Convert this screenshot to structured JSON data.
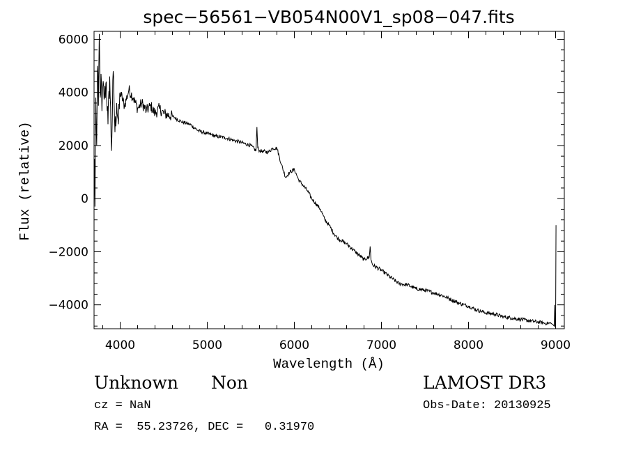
{
  "chart_data": {
    "type": "line",
    "title": "spec−56561−VB054N00V1_sp08−047.fits",
    "xlabel": "Wavelength (Å)",
    "ylabel": "Flux (relative)",
    "xlim": [
      3700,
      9100
    ],
    "ylim": [
      -4900,
      6300
    ],
    "xticks": [
      4000,
      5000,
      6000,
      7000,
      8000,
      9000
    ],
    "xtick_labels": [
      "4000",
      "5000",
      "6000",
      "7000",
      "8000",
      "9000"
    ],
    "yticks": [
      -4000,
      -2000,
      0,
      2000,
      4000,
      6000
    ],
    "ytick_labels": [
      "−4000",
      "−2000",
      "0",
      "2000",
      "4000",
      "6000"
    ],
    "grid": false,
    "series": [
      {
        "name": "flux",
        "x": [
          3700,
          3705,
          3710,
          3720,
          3730,
          3740,
          3750,
          3760,
          3770,
          3780,
          3790,
          3800,
          3820,
          3840,
          3860,
          3880,
          3900,
          3920,
          3940,
          3960,
          3980,
          4000,
          4050,
          4100,
          4150,
          4200,
          4250,
          4300,
          4350,
          4400,
          4450,
          4500,
          4600,
          4700,
          4800,
          4900,
          5000,
          5100,
          5200,
          5300,
          5400,
          5500,
          5560,
          5570,
          5580,
          5600,
          5700,
          5750,
          5800,
          5850,
          5900,
          5950,
          6000,
          6050,
          6100,
          6150,
          6200,
          6250,
          6300,
          6350,
          6400,
          6450,
          6500,
          6600,
          6700,
          6800,
          6860,
          6870,
          6880,
          6900,
          7000,
          7100,
          7200,
          7300,
          7400,
          7500,
          7600,
          7700,
          7800,
          7900,
          8000,
          8100,
          8200,
          8300,
          8400,
          8500,
          8600,
          8700,
          8800,
          8900,
          8950,
          8970,
          8985,
          8990,
          8995,
          9000,
          9005
        ],
        "y": [
          -100,
          1500,
          -300,
          3800,
          2000,
          5000,
          3500,
          6200,
          3800,
          4700,
          3300,
          4200,
          3800,
          4400,
          2800,
          4600,
          1800,
          4800,
          2500,
          3600,
          2800,
          4000,
          3500,
          4100,
          3800,
          3400,
          3600,
          3300,
          3500,
          3200,
          3400,
          3200,
          3100,
          2900,
          2800,
          2550,
          2450,
          2350,
          2300,
          2200,
          2100,
          2000,
          1800,
          2700,
          1900,
          1800,
          1750,
          1900,
          1900,
          1300,
          800,
          1000,
          1100,
          700,
          500,
          300,
          0,
          -200,
          -400,
          -800,
          -1000,
          -1300,
          -1500,
          -1700,
          -2000,
          -2300,
          -2200,
          -1800,
          -2300,
          -2500,
          -2700,
          -2950,
          -3200,
          -3250,
          -3400,
          -3450,
          -3550,
          -3650,
          -3800,
          -3950,
          -4050,
          -4200,
          -4300,
          -4350,
          -4450,
          -4500,
          -4550,
          -4600,
          -4650,
          -4700,
          -4700,
          -4750,
          -4800,
          -4000,
          -4800,
          -4800,
          -1000
        ]
      }
    ]
  },
  "info": {
    "object_class": "Unknown",
    "subclass": "Non",
    "survey": "LAMOST DR3",
    "redshift": "cz = NaN",
    "obs_date": "Obs-Date: 20130925",
    "coords": "RA =  55.23726, DEC =   0.31970"
  }
}
